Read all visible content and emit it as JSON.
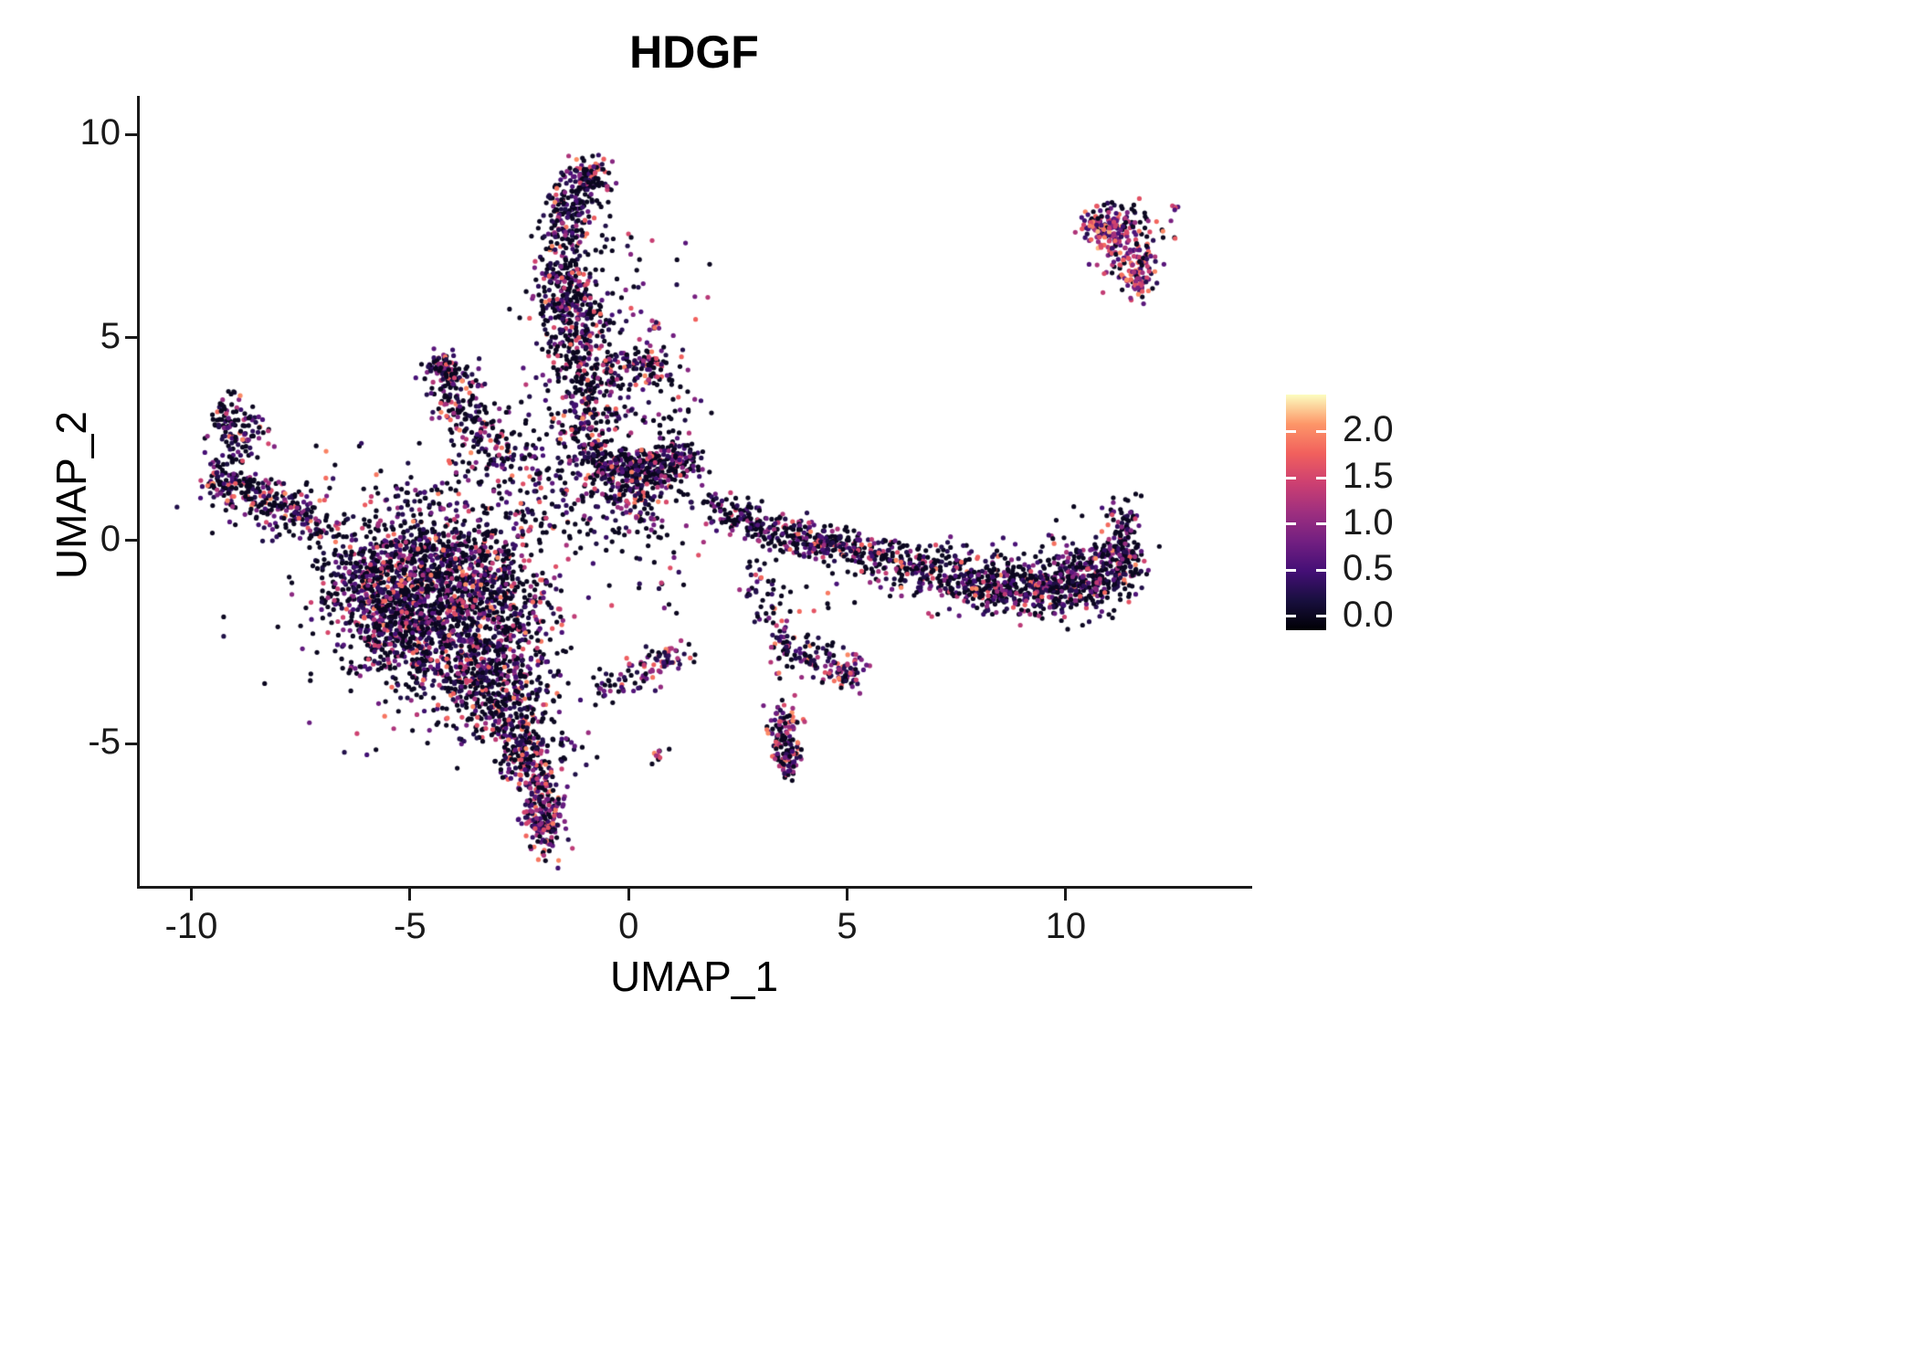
{
  "chart_data": {
    "type": "scatter",
    "title": "HDGF",
    "xlabel": "UMAP_1",
    "ylabel": "UMAP_2",
    "xlim": [
      -11.2,
      14.2
    ],
    "ylim": [
      -8.5,
      10.95
    ],
    "grid": false,
    "x_ticks": [
      {
        "value": -10,
        "label": "-10"
      },
      {
        "value": -5,
        "label": "-5"
      },
      {
        "value": 0,
        "label": "0"
      },
      {
        "value": 5,
        "label": "5"
      },
      {
        "value": 10,
        "label": "10"
      }
    ],
    "y_ticks": [
      {
        "value": 10,
        "label": "10"
      },
      {
        "value": 5,
        "label": "5"
      },
      {
        "value": 0,
        "label": "0"
      },
      {
        "value": -5,
        "label": "-5"
      }
    ],
    "legend": {
      "position": "right",
      "range": [
        -0.15,
        2.4
      ],
      "ticks": [
        {
          "value": 2.0,
          "label": "2.0"
        },
        {
          "value": 1.5,
          "label": "1.5"
        },
        {
          "value": 1.0,
          "label": "1.0"
        },
        {
          "value": 0.5,
          "label": "0.5"
        },
        {
          "value": 0.0,
          "label": "0.0"
        }
      ]
    },
    "colormap": {
      "name": "magma",
      "stops": [
        "#000004",
        "#180f3e",
        "#440f76",
        "#721f81",
        "#9e2f7f",
        "#cd4071",
        "#f1605d",
        "#fd9668",
        "#fcfdbf"
      ]
    },
    "point_radius_px": 2.6,
    "seed": 42,
    "expression_default": {
      "p_zero": 0.48,
      "min": 0.2,
      "max": 2.05,
      "pow": 2.0
    },
    "clusters": [
      {
        "x": -9.2,
        "y": 3.05,
        "sx": 0.22,
        "sy": 0.3,
        "n": 55
      },
      {
        "x": -8.7,
        "y": 2.75,
        "sx": 0.3,
        "sy": 0.25,
        "n": 45
      },
      {
        "x": -8.95,
        "y": 2.25,
        "sx": 0.22,
        "sy": 0.28,
        "n": 25
      },
      {
        "x": -9.35,
        "y": 1.5,
        "sx": 0.2,
        "sy": 0.25,
        "n": 60
      },
      {
        "x": -8.8,
        "y": 1.25,
        "sx": 0.3,
        "sy": 0.25,
        "n": 70
      },
      {
        "x": -8.2,
        "y": 0.95,
        "sx": 0.3,
        "sy": 0.25,
        "n": 60
      },
      {
        "x": -7.6,
        "y": 0.65,
        "sx": 0.3,
        "sy": 0.25,
        "n": 50
      },
      {
        "x": -7.0,
        "y": 0.3,
        "sx": 0.35,
        "sy": 0.3,
        "n": 45
      },
      {
        "x": -8.6,
        "y": 1.1,
        "sx": 0.8,
        "sy": 0.5,
        "n": 40
      },
      {
        "x": -4.9,
        "y": -1.1,
        "sx": 1.0,
        "sy": 0.8,
        "n": 550
      },
      {
        "x": -3.9,
        "y": -2.3,
        "sx": 0.9,
        "sy": 0.9,
        "n": 550
      },
      {
        "x": -5.4,
        "y": -2.0,
        "sx": 0.65,
        "sy": 0.7,
        "n": 300
      },
      {
        "x": -3.3,
        "y": -3.4,
        "sx": 0.6,
        "sy": 0.65,
        "n": 280
      },
      {
        "x": -4.5,
        "y": -0.4,
        "sx": 1.1,
        "sy": 0.5,
        "n": 260
      },
      {
        "x": -2.9,
        "y": -1.4,
        "sx": 0.5,
        "sy": 0.8,
        "n": 200
      },
      {
        "x": -2.7,
        "y": -4.3,
        "sx": 0.4,
        "sy": 0.5,
        "n": 160
      },
      {
        "x": -6.1,
        "y": -0.9,
        "sx": 0.5,
        "sy": 0.55,
        "n": 130
      },
      {
        "x": -4.5,
        "y": -1.9,
        "sx": 1.7,
        "sy": 1.5,
        "n": 180
      },
      {
        "x": -2.1,
        "y": -2.6,
        "sx": 0.35,
        "sy": 1.0,
        "n": 70
      },
      {
        "x": -2.4,
        "y": -5.2,
        "sx": 0.3,
        "sy": 0.4,
        "n": 110
      },
      {
        "x": -2.1,
        "y": -6.0,
        "sx": 0.25,
        "sy": 0.4,
        "n": 110,
        "p0": 0.3,
        "pow": 1.4
      },
      {
        "x": -1.9,
        "y": -6.9,
        "sx": 0.22,
        "sy": 0.45,
        "n": 160,
        "p0": 0.25,
        "pow": 1.3
      },
      {
        "x": -1.3,
        "y": -5.1,
        "sx": 0.35,
        "sy": 0.3,
        "n": 25
      },
      {
        "x": 0.65,
        "y": -5.3,
        "sx": 0.1,
        "sy": 0.12,
        "n": 10,
        "p0": 0.2,
        "pow": 1.0
      },
      {
        "x": -0.3,
        "y": -3.6,
        "sx": 0.3,
        "sy": 0.25,
        "n": 30
      },
      {
        "x": 0.3,
        "y": -3.2,
        "sx": 0.3,
        "sy": 0.25,
        "n": 35
      },
      {
        "x": 0.9,
        "y": -2.85,
        "sx": 0.25,
        "sy": 0.2,
        "n": 40,
        "p0": 0.3
      },
      {
        "x": -4.25,
        "y": 4.3,
        "sx": 0.22,
        "sy": 0.18,
        "n": 70,
        "p0": 0.35
      },
      {
        "x": -3.95,
        "y": 3.7,
        "sx": 0.28,
        "sy": 0.35,
        "n": 80
      },
      {
        "x": -3.5,
        "y": 2.9,
        "sx": 0.38,
        "sy": 0.4,
        "n": 80
      },
      {
        "x": -3.0,
        "y": 2.3,
        "sx": 0.45,
        "sy": 0.35,
        "n": 60
      },
      {
        "x": -2.5,
        "y": 1.9,
        "sx": 0.4,
        "sy": 0.3,
        "n": 45
      },
      {
        "x": -4.4,
        "y": 1.0,
        "sx": 0.8,
        "sy": 0.5,
        "n": 90
      },
      {
        "x": -0.95,
        "y": 8.85,
        "sx": 0.3,
        "sy": 0.28,
        "n": 120,
        "p0": 0.4
      },
      {
        "x": -1.35,
        "y": 8.25,
        "sx": 0.3,
        "sy": 0.3,
        "n": 90
      },
      {
        "x": -1.45,
        "y": 7.5,
        "sx": 0.28,
        "sy": 0.35,
        "n": 70
      },
      {
        "x": -1.5,
        "y": 6.5,
        "sx": 0.33,
        "sy": 0.45,
        "n": 130
      },
      {
        "x": -1.35,
        "y": 5.6,
        "sx": 0.38,
        "sy": 0.4,
        "n": 130
      },
      {
        "x": -1.2,
        "y": 4.8,
        "sx": 0.38,
        "sy": 0.4,
        "n": 110
      },
      {
        "x": -1.05,
        "y": 3.9,
        "sx": 0.38,
        "sy": 0.4,
        "n": 95
      },
      {
        "x": -0.9,
        "y": 3.1,
        "sx": 0.35,
        "sy": 0.35,
        "n": 75
      },
      {
        "x": -0.35,
        "y": 5.6,
        "sx": 0.35,
        "sy": 1.3,
        "n": 45
      },
      {
        "x": 0.6,
        "y": 5.2,
        "sx": 0.1,
        "sy": 0.1,
        "n": 8,
        "p0": 0.2,
        "pow": 1.0
      },
      {
        "x": 0.35,
        "y": 6.5,
        "sx": 0.5,
        "sy": 0.7,
        "n": 12
      },
      {
        "x": 0.45,
        "y": 4.35,
        "sx": 0.28,
        "sy": 0.25,
        "n": 85,
        "p0": 0.35
      },
      {
        "x": -0.25,
        "y": 4.1,
        "sx": 0.4,
        "sy": 0.5,
        "n": 45
      },
      {
        "x": 1.1,
        "y": 3.4,
        "sx": 0.5,
        "sy": 0.6,
        "n": 20
      },
      {
        "x": 0.35,
        "y": 1.85,
        "sx": 0.55,
        "sy": 0.25,
        "n": 200,
        "p0": 0.5
      },
      {
        "x": -0.55,
        "y": 1.75,
        "sx": 0.4,
        "sy": 0.3,
        "n": 120,
        "p0": 0.5
      },
      {
        "x": 1.1,
        "y": 1.95,
        "sx": 0.3,
        "sy": 0.25,
        "n": 80
      },
      {
        "x": 0.2,
        "y": 1.25,
        "sx": 0.5,
        "sy": 0.3,
        "n": 90
      },
      {
        "x": 0.0,
        "y": 0.6,
        "sx": 0.5,
        "sy": 0.3,
        "n": 55
      },
      {
        "x": -1.1,
        "y": 2.45,
        "sx": 0.5,
        "sy": 0.35,
        "n": 65
      },
      {
        "x": -1.8,
        "y": 1.1,
        "sx": 0.5,
        "sy": 0.5,
        "n": 60
      },
      {
        "x": -2.4,
        "y": 0.6,
        "sx": 0.4,
        "sy": 0.4,
        "n": 40
      },
      {
        "x": 0.8,
        "y": -0.2,
        "sx": 0.5,
        "sy": 0.5,
        "n": 15
      },
      {
        "x": 2.0,
        "y": 0.8,
        "sx": 0.3,
        "sy": 0.25,
        "n": 30
      },
      {
        "x": 2.5,
        "y": 0.55,
        "sx": 0.3,
        "sy": 0.2,
        "n": 55
      },
      {
        "x": 3.1,
        "y": 0.35,
        "sx": 0.35,
        "sy": 0.2,
        "n": 60
      },
      {
        "x": 3.8,
        "y": 0.1,
        "sx": 0.35,
        "sy": 0.22,
        "n": 75
      },
      {
        "x": 4.4,
        "y": -0.1,
        "sx": 0.3,
        "sy": 0.2,
        "n": 70
      },
      {
        "x": 5.0,
        "y": -0.15,
        "sx": 0.35,
        "sy": 0.22,
        "n": 70
      },
      {
        "x": 5.8,
        "y": -0.45,
        "sx": 0.4,
        "sy": 0.25,
        "n": 70
      },
      {
        "x": 6.6,
        "y": -0.7,
        "sx": 0.45,
        "sy": 0.3,
        "n": 90
      },
      {
        "x": 7.5,
        "y": -0.9,
        "sx": 0.55,
        "sy": 0.35,
        "n": 140
      },
      {
        "x": 8.4,
        "y": -1.1,
        "sx": 0.55,
        "sy": 0.35,
        "n": 160
      },
      {
        "x": 9.3,
        "y": -1.2,
        "sx": 0.55,
        "sy": 0.35,
        "n": 160
      },
      {
        "x": 10.1,
        "y": -1.1,
        "sx": 0.5,
        "sy": 0.35,
        "n": 150
      },
      {
        "x": 10.8,
        "y": -0.85,
        "sx": 0.45,
        "sy": 0.4,
        "n": 140
      },
      {
        "x": 11.3,
        "y": -0.5,
        "sx": 0.25,
        "sy": 0.45,
        "n": 110
      },
      {
        "x": 11.35,
        "y": 0.45,
        "sx": 0.15,
        "sy": 0.4,
        "n": 55
      },
      {
        "x": 9.3,
        "y": -0.35,
        "sx": 1.3,
        "sy": 0.3,
        "n": 50
      },
      {
        "x": 10.3,
        "y": 0.9,
        "sx": 0.6,
        "sy": 0.4,
        "n": 10
      },
      {
        "x": 2.95,
        "y": -0.7,
        "sx": 0.25,
        "sy": 0.45,
        "n": 25
      },
      {
        "x": 3.3,
        "y": -1.7,
        "sx": 0.22,
        "sy": 0.45,
        "n": 25
      },
      {
        "x": 3.6,
        "y": -2.55,
        "sx": 0.2,
        "sy": 0.3,
        "n": 40
      },
      {
        "x": 4.3,
        "y": -2.9,
        "sx": 0.4,
        "sy": 0.22,
        "n": 55
      },
      {
        "x": 5.0,
        "y": -3.2,
        "sx": 0.25,
        "sy": 0.2,
        "n": 65,
        "p0": 0.25,
        "pow": 1.3
      },
      {
        "x": 3.55,
        "y": -4.65,
        "sx": 0.17,
        "sy": 0.35,
        "n": 85,
        "p0": 0.3,
        "pow": 1.3
      },
      {
        "x": 3.65,
        "y": -5.35,
        "sx": 0.14,
        "sy": 0.3,
        "n": 70,
        "p0": 0.3,
        "pow": 1.3
      },
      {
        "x": 11.15,
        "y": 7.55,
        "sx": 0.3,
        "sy": 0.28,
        "n": 110,
        "p0": 0.12,
        "pow": 1.0,
        "emin": 0.3,
        "emax": 2.2
      },
      {
        "x": 11.5,
        "y": 6.8,
        "sx": 0.28,
        "sy": 0.3,
        "n": 80,
        "p0": 0.15,
        "pow": 1.0
      },
      {
        "x": 11.7,
        "y": 6.35,
        "sx": 0.18,
        "sy": 0.2,
        "n": 45,
        "p0": 0.15,
        "pow": 1.0
      },
      {
        "x": 10.7,
        "y": 7.75,
        "sx": 0.25,
        "sy": 0.18,
        "n": 45,
        "p0": 0.2,
        "pow": 1.1
      },
      {
        "x": 11.1,
        "y": 8.15,
        "sx": 0.3,
        "sy": 0.15,
        "n": 25,
        "p0": 0.3
      },
      {
        "x": 11.95,
        "y": 7.5,
        "sx": 0.3,
        "sy": 0.3,
        "n": 20,
        "p0": 0.3
      },
      {
        "x": 12.45,
        "y": 8.3,
        "sx": 0.08,
        "sy": 0.08,
        "n": 5,
        "p0": 0.2,
        "pow": 1.0
      },
      {
        "x": -2.3,
        "y": 4.3,
        "sx": 0.4,
        "sy": 0.9,
        "n": 10
      },
      {
        "x": 1.6,
        "y": 6.3,
        "sx": 0.4,
        "sy": 0.5,
        "n": 6
      },
      {
        "x": 0.8,
        "y": -1.5,
        "sx": 0.3,
        "sy": 0.4,
        "n": 8
      },
      {
        "x": -0.6,
        "y": -0.6,
        "sx": 0.5,
        "sy": 0.5,
        "n": 12
      },
      {
        "x": 4.7,
        "y": -1.3,
        "sx": 0.6,
        "sy": 0.4,
        "n": 12
      },
      {
        "x": -6.9,
        "y": 1.6,
        "sx": 0.4,
        "sy": 0.4,
        "n": 8
      },
      {
        "x": 0.65,
        "y": 2.9,
        "sx": 0.5,
        "sy": 0.4,
        "n": 25
      }
    ]
  },
  "colors": {
    "background": "#ffffff",
    "axis": "#1a1a1a",
    "text": "#000000"
  }
}
